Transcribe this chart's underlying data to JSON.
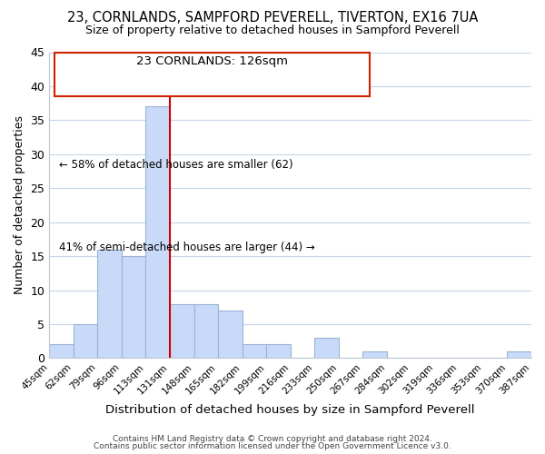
{
  "title": "23, CORNLANDS, SAMPFORD PEVERELL, TIVERTON, EX16 7UA",
  "subtitle": "Size of property relative to detached houses in Sampford Peverell",
  "xlabel": "Distribution of detached houses by size in Sampford Peverell",
  "ylabel": "Number of detached properties",
  "bin_labels": [
    "45sqm",
    "62sqm",
    "79sqm",
    "96sqm",
    "113sqm",
    "131sqm",
    "148sqm",
    "165sqm",
    "182sqm",
    "199sqm",
    "216sqm",
    "233sqm",
    "250sqm",
    "267sqm",
    "284sqm",
    "302sqm",
    "319sqm",
    "336sqm",
    "353sqm",
    "370sqm",
    "387sqm"
  ],
  "bar_heights": [
    2,
    5,
    16,
    15,
    37,
    8,
    8,
    7,
    2,
    2,
    0,
    3,
    0,
    1,
    0,
    0,
    0,
    0,
    0,
    1,
    0
  ],
  "bar_color": "#c9daf8",
  "bar_edge_color": "#9ab3d5",
  "vline_color": "#cc0000",
  "annotation_line1": "23 CORNLANDS: 126sqm",
  "annotation_line2": "← 58% of detached houses are smaller (62)",
  "annotation_line3": "41% of semi-detached houses are larger (44) →",
  "ylim": [
    0,
    45
  ],
  "yticks": [
    0,
    5,
    10,
    15,
    20,
    25,
    30,
    35,
    40,
    45
  ],
  "footer_line1": "Contains HM Land Registry data © Crown copyright and database right 2024.",
  "footer_line2": "Contains public sector information licensed under the Open Government Licence v3.0.",
  "background_color": "#ffffff",
  "grid_color": "#c8d4e8"
}
